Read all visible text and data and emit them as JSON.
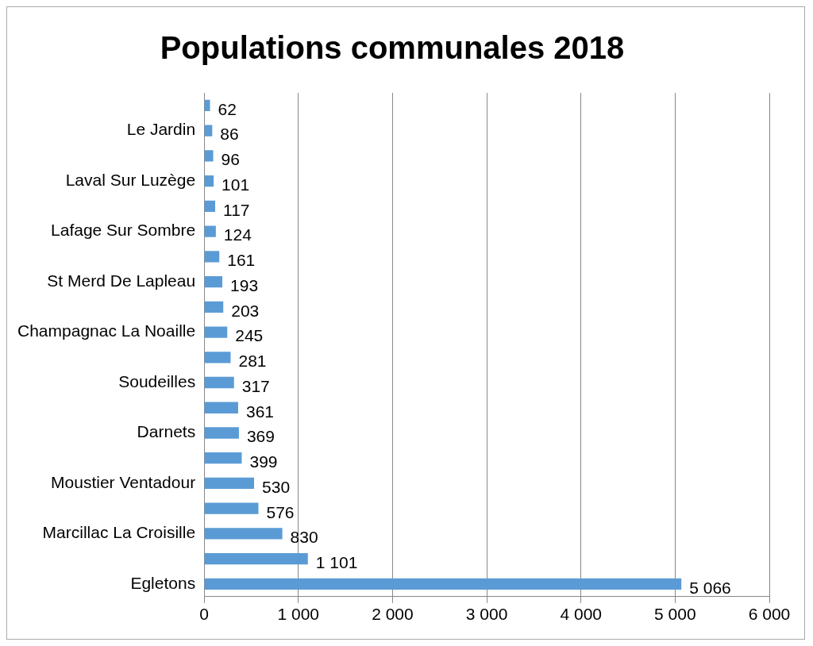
{
  "chart_data": {
    "type": "bar",
    "orientation": "horizontal",
    "title": "Populations communales 2018",
    "categories": [
      null,
      "Le Jardin",
      null,
      "Laval Sur Luzège",
      null,
      "Lafage Sur Sombre",
      null,
      "St Merd De Lapleau",
      null,
      "Champagnac La Noaille",
      null,
      "Soudeilles",
      null,
      "Darnets",
      null,
      "Moustier Ventadour",
      null,
      "Marcillac La Croisille",
      null,
      "Egletons"
    ],
    "values": [
      62,
      86,
      96,
      101,
      117,
      124,
      161,
      193,
      203,
      245,
      281,
      317,
      361,
      369,
      399,
      530,
      576,
      830,
      1101,
      5066
    ],
    "value_labels": [
      "62",
      "86",
      "96",
      "101",
      "117",
      "124",
      "161",
      "193",
      "203",
      "245",
      "281",
      "317",
      "361",
      "369",
      "399",
      "530",
      "576",
      "830",
      "1 101",
      "5 066"
    ],
    "color": "#5b9bd5",
    "xlim": [
      0,
      6000
    ],
    "xticks": [
      0,
      {
        "value": 1000,
        "label": "1 000"
      },
      {
        "value": 2000,
        "label": "2 000"
      },
      {
        "value": 3000,
        "label": "3 000"
      },
      {
        "value": 4000,
        "label": "4 000"
      },
      {
        "value": 5000,
        "label": "5 000"
      },
      {
        "value": 6000,
        "label": "6 000"
      }
    ],
    "grid": "x",
    "legend": false
  }
}
